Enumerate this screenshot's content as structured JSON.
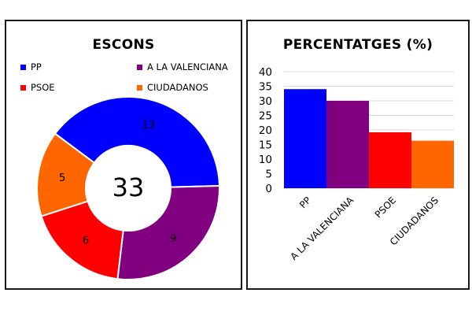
{
  "chart_data": [
    {
      "type": "pie",
      "title": "ESCONS",
      "center_label": "33",
      "categories": [
        "PP",
        "A LA VALENCIANA",
        "PSOE",
        "CIUDADANOS"
      ],
      "values": [
        13,
        9,
        6,
        5
      ],
      "colors": [
        "#0000FF",
        "#800080",
        "#FF0000",
        "#FF6600"
      ],
      "legend_position": "top"
    },
    {
      "type": "bar",
      "title": "PERCENTATGES (%)",
      "categories": [
        "PP",
        "A LA VALENCIANA",
        "PSOE",
        "CIUDADANOS"
      ],
      "values": [
        34,
        30,
        19.2,
        16.3
      ],
      "colors": [
        "#0000FF",
        "#800080",
        "#FF0000",
        "#FF6600"
      ],
      "ylim": [
        0,
        40
      ],
      "yticks": [
        0,
        5,
        10,
        15,
        20,
        25,
        30,
        35,
        40
      ],
      "grid": true
    }
  ]
}
